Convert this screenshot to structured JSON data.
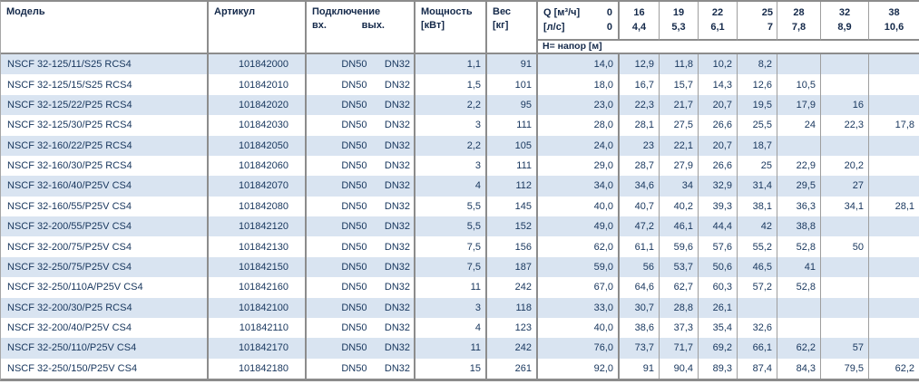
{
  "header": {
    "model": "Модель",
    "article": "Артикул",
    "connection": "Подключение",
    "inlet_label": "вх.",
    "outlet_label": "вых.",
    "power_line1": "Мощность",
    "power_line2": "[кВт]",
    "weight_line1": "Вес",
    "weight_line2": "[кг]",
    "q_row1_label": "Q [м³/ч]",
    "q_row1_zero": "0",
    "q_row2_label": "[л/с]",
    "q_row2_zero": "0",
    "flow_columns": [
      {
        "m3h": "16",
        "ls": "4,4"
      },
      {
        "m3h": "19",
        "ls": "5,3"
      },
      {
        "m3h": "22",
        "ls": "6,1"
      },
      {
        "m3h": "25",
        "ls": "7"
      },
      {
        "m3h": "28",
        "ls": "7,8"
      },
      {
        "m3h": "32",
        "ls": "8,9"
      },
      {
        "m3h": "38",
        "ls": "10,6"
      }
    ],
    "head_label": "Н= напор [м]"
  },
  "rows": [
    {
      "model": "NSCF 32-125/11/S25 RCS4",
      "article": "101842000",
      "inlet": "DN50",
      "outlet": "DN32",
      "power": "1,1",
      "weight": "91",
      "h0": "14,0",
      "h16": "12,9",
      "h19": "11,8",
      "h22": "10,2",
      "h25": "8,2",
      "h28": "",
      "h32": "",
      "h38": ""
    },
    {
      "model": "NSCF 32-125/15/S25 RCS4",
      "article": "101842010",
      "inlet": "DN50",
      "outlet": "DN32",
      "power": "1,5",
      "weight": "101",
      "h0": "18,0",
      "h16": "16,7",
      "h19": "15,7",
      "h22": "14,3",
      "h25": "12,6",
      "h28": "10,5",
      "h32": "",
      "h38": ""
    },
    {
      "model": "NSCF 32-125/22/P25 RCS4",
      "article": "101842020",
      "inlet": "DN50",
      "outlet": "DN32",
      "power": "2,2",
      "weight": "95",
      "h0": "23,0",
      "h16": "22,3",
      "h19": "21,7",
      "h22": "20,7",
      "h25": "19,5",
      "h28": "17,9",
      "h32": "16",
      "h38": ""
    },
    {
      "model": "NSCF 32-125/30/P25 RCS4",
      "article": "101842030",
      "inlet": "DN50",
      "outlet": "DN32",
      "power": "3",
      "weight": "111",
      "h0": "28,0",
      "h16": "28,1",
      "h19": "27,5",
      "h22": "26,6",
      "h25": "25,5",
      "h28": "24",
      "h32": "22,3",
      "h38": "17,8"
    },
    {
      "model": "NSCF 32-160/22/P25 RCS4",
      "article": "101842050",
      "inlet": "DN50",
      "outlet": "DN32",
      "power": "2,2",
      "weight": "105",
      "h0": "24,0",
      "h16": "23",
      "h19": "22,1",
      "h22": "20,7",
      "h25": "18,7",
      "h28": "",
      "h32": "",
      "h38": ""
    },
    {
      "model": "NSCF 32-160/30/P25 RCS4",
      "article": "101842060",
      "inlet": "DN50",
      "outlet": "DN32",
      "power": "3",
      "weight": "111",
      "h0": "29,0",
      "h16": "28,7",
      "h19": "27,9",
      "h22": "26,6",
      "h25": "25",
      "h28": "22,9",
      "h32": "20,2",
      "h38": ""
    },
    {
      "model": "NSCF 32-160/40/P25V CS4",
      "article": "101842070",
      "inlet": "DN50",
      "outlet": "DN32",
      "power": "4",
      "weight": "112",
      "h0": "34,0",
      "h16": "34,6",
      "h19": "34",
      "h22": "32,9",
      "h25": "31,4",
      "h28": "29,5",
      "h32": "27",
      "h38": ""
    },
    {
      "model": "NSCF 32-160/55/P25V CS4",
      "article": "101842080",
      "inlet": "DN50",
      "outlet": "DN32",
      "power": "5,5",
      "weight": "145",
      "h0": "40,0",
      "h16": "40,7",
      "h19": "40,2",
      "h22": "39,3",
      "h25": "38,1",
      "h28": "36,3",
      "h32": "34,1",
      "h38": "28,1"
    },
    {
      "model": "NSCF 32-200/55/P25V CS4",
      "article": "101842120",
      "inlet": "DN50",
      "outlet": "DN32",
      "power": "5,5",
      "weight": "152",
      "h0": "49,0",
      "h16": "47,2",
      "h19": "46,1",
      "h22": "44,4",
      "h25": "42",
      "h28": "38,8",
      "h32": "",
      "h38": ""
    },
    {
      "model": "NSCF 32-200/75/P25V CS4",
      "article": "101842130",
      "inlet": "DN50",
      "outlet": "DN32",
      "power": "7,5",
      "weight": "156",
      "h0": "62,0",
      "h16": "61,1",
      "h19": "59,6",
      "h22": "57,6",
      "h25": "55,2",
      "h28": "52,8",
      "h32": "50",
      "h38": ""
    },
    {
      "model": "NSCF 32-250/75/P25V CS4",
      "article": "101842150",
      "inlet": "DN50",
      "outlet": "DN32",
      "power": "7,5",
      "weight": "187",
      "h0": "59,0",
      "h16": "56",
      "h19": "53,7",
      "h22": "50,6",
      "h25": "46,5",
      "h28": "41",
      "h32": "",
      "h38": ""
    },
    {
      "model": "NSCF 32-250/110A/P25V CS4",
      "article": "101842160",
      "inlet": "DN50",
      "outlet": "DN32",
      "power": "11",
      "weight": "242",
      "h0": "67,0",
      "h16": "64,6",
      "h19": "62,7",
      "h22": "60,3",
      "h25": "57,2",
      "h28": "52,8",
      "h32": "",
      "h38": ""
    },
    {
      "model": "NSCF 32-200/30/P25 RCS4",
      "article": "101842100",
      "inlet": "DN50",
      "outlet": "DN32",
      "power": "3",
      "weight": "118",
      "h0": "33,0",
      "h16": "30,7",
      "h19": "28,8",
      "h22": "26,1",
      "h25": "",
      "h28": "",
      "h32": "",
      "h38": ""
    },
    {
      "model": "NSCF 32-200/40/P25V CS4",
      "article": "101842110",
      "inlet": "DN50",
      "outlet": "DN32",
      "power": "4",
      "weight": "123",
      "h0": "40,0",
      "h16": "38,6",
      "h19": "37,3",
      "h22": "35,4",
      "h25": "32,6",
      "h28": "",
      "h32": "",
      "h38": ""
    },
    {
      "model": "NSCF 32-250/110/P25V CS4",
      "article": "101842170",
      "inlet": "DN50",
      "outlet": "DN32",
      "power": "11",
      "weight": "242",
      "h0": "76,0",
      "h16": "73,7",
      "h19": "71,7",
      "h22": "69,2",
      "h25": "66,1",
      "h28": "62,2",
      "h32": "57",
      "h38": ""
    },
    {
      "model": "NSCF 32-250/150/P25V CS4",
      "article": "101842180",
      "inlet": "DN50",
      "outlet": "DN32",
      "power": "15",
      "weight": "261",
      "h0": "92,0",
      "h16": "91",
      "h19": "90,4",
      "h22": "89,3",
      "h25": "87,4",
      "h28": "84,3",
      "h32": "79,5",
      "h38": "62,2"
    }
  ]
}
